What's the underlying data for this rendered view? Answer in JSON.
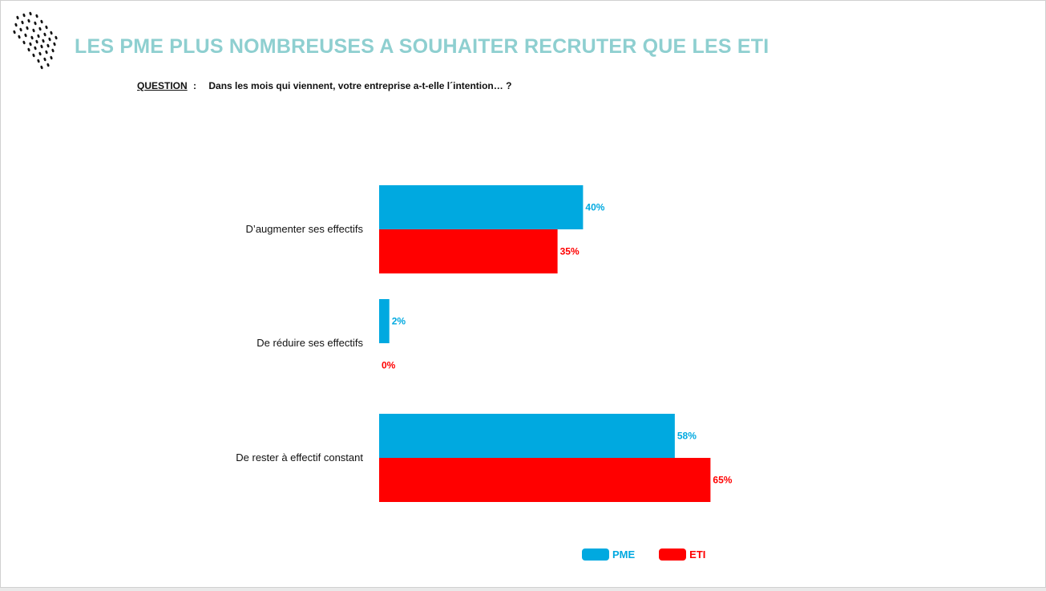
{
  "header": {
    "title": "LES PME PLUS NOMBREUSES A SOUHAITER RECRUTER QUE LES ETI",
    "question_label": "QUESTION",
    "question_sep": ":",
    "question_text": "Dans les mois qui viennent, votre entreprise a-t-elle l´intention… ?"
  },
  "logo": {
    "icon": "dotted-rain-icon",
    "color": "#111111"
  },
  "colors": {
    "title": "#8ecfd0",
    "pme": "#00a9e0",
    "eti": "#ff0000"
  },
  "chart_data": {
    "type": "bar",
    "orientation": "horizontal",
    "categories": [
      "D’augmenter ses effectifs",
      "De réduire ses effectifs",
      "De rester à effectif constant"
    ],
    "series": [
      {
        "name": "PME",
        "values": [
          40,
          2,
          58
        ],
        "labels": [
          "40%",
          "2%",
          "58%"
        ],
        "color": "#00a9e0"
      },
      {
        "name": "ETI",
        "values": [
          35,
          0,
          65
        ],
        "labels": [
          "35%",
          "0%",
          "65%"
        ],
        "color": "#ff0000"
      }
    ],
    "unit": "%",
    "xlim": [
      0,
      100
    ],
    "grid": false,
    "legend": "bottom"
  }
}
